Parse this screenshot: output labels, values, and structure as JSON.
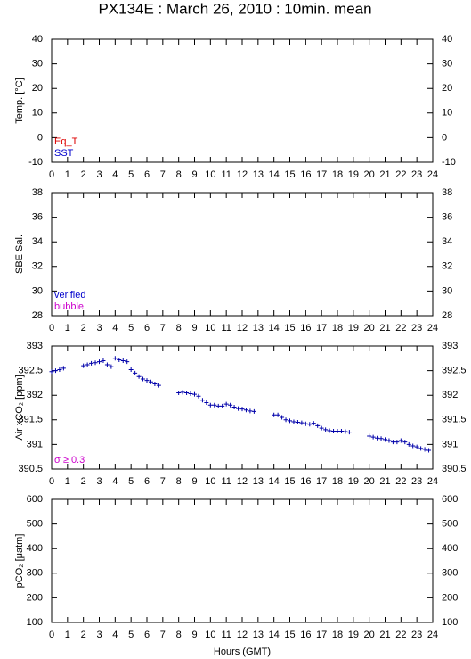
{
  "chart_data": [
    {
      "type": "scatter",
      "title": "PX134E : March 26, 2010 : 10min. mean",
      "ylabel": "Temp. [°C]",
      "xlim": [
        0,
        24
      ],
      "xticks": [
        0,
        1,
        2,
        3,
        4,
        5,
        6,
        7,
        8,
        9,
        10,
        11,
        12,
        13,
        14,
        15,
        16,
        17,
        18,
        19,
        20,
        21,
        22,
        23,
        24
      ],
      "ylim": [
        -10,
        40
      ],
      "yticks": [
        -10,
        0,
        10,
        20,
        30,
        40
      ],
      "legend": [
        {
          "name": "Eq_T",
          "color": "#dd0000"
        },
        {
          "name": "SST",
          "color": "#0000cc"
        }
      ],
      "x": [],
      "values": []
    },
    {
      "type": "scatter",
      "ylabel": "SBE Sal.",
      "xlim": [
        0,
        24
      ],
      "xticks": [
        0,
        1,
        2,
        3,
        4,
        5,
        6,
        7,
        8,
        9,
        10,
        11,
        12,
        13,
        14,
        15,
        16,
        17,
        18,
        19,
        20,
        21,
        22,
        23,
        24
      ],
      "ylim": [
        28,
        38
      ],
      "yticks": [
        28,
        30,
        32,
        34,
        36,
        38
      ],
      "legend": [
        {
          "name": "verified",
          "color": "#0000cc"
        },
        {
          "name": "bubble",
          "color": "#cc00cc"
        }
      ],
      "x": [],
      "values": []
    },
    {
      "type": "scatter",
      "ylabel": "Air xCO₂ [ppm]",
      "color": "#0000aa",
      "xlim": [
        0,
        24
      ],
      "xticks": [
        0,
        1,
        2,
        3,
        4,
        5,
        6,
        7,
        8,
        9,
        10,
        11,
        12,
        13,
        14,
        15,
        16,
        17,
        18,
        19,
        20,
        21,
        22,
        23,
        24
      ],
      "ylim": [
        390.5,
        393
      ],
      "yticks": [
        390.5,
        391,
        391.5,
        392,
        392.5,
        393
      ],
      "legend": [
        {
          "name": "σ ≥ 0.3",
          "color": "#cc00cc"
        }
      ],
      "x": [
        0,
        0.25,
        0.5,
        0.75,
        1,
        1.25,
        1.5,
        1.75,
        2,
        2.25,
        2.5,
        2.75,
        3,
        3.25,
        3.5,
        3.75,
        4,
        4.25,
        4.5,
        4.75,
        5,
        5.25,
        5.5,
        5.75,
        6,
        6.25,
        6.5,
        6.75,
        7,
        7.25,
        7.5,
        7.75,
        8,
        8.25,
        8.5,
        8.75,
        9,
        9.25,
        9.5,
        9.75,
        10,
        10.25,
        10.5,
        10.75,
        11,
        11.25,
        11.5,
        11.75,
        12,
        12.25,
        12.5,
        12.75,
        13,
        13.25,
        13.5,
        13.75,
        14,
        14.25,
        14.5,
        14.75,
        15,
        15.25,
        15.5,
        15.75,
        16,
        16.25,
        16.5,
        16.75,
        17,
        17.25,
        17.5,
        17.75,
        18,
        18.25,
        18.5,
        18.75,
        19,
        19.25,
        19.5,
        19.75,
        20,
        20.25,
        20.5,
        20.75,
        21,
        21.25,
        21.5,
        21.75,
        22,
        22.25,
        22.5,
        22.75,
        23,
        23.25,
        23.5,
        23.75
      ],
      "values": [
        392.48,
        392.5,
        392.52,
        392.55,
        null,
        null,
        null,
        null,
        392.6,
        392.62,
        392.65,
        392.66,
        392.68,
        392.7,
        392.62,
        392.58,
        392.75,
        392.72,
        392.7,
        392.68,
        392.52,
        392.45,
        392.38,
        392.33,
        392.3,
        392.27,
        392.23,
        392.2,
        null,
        null,
        null,
        null,
        392.05,
        392.06,
        392.05,
        392.03,
        392.02,
        391.98,
        391.9,
        391.85,
        391.8,
        391.8,
        391.78,
        391.78,
        391.82,
        391.8,
        391.76,
        391.73,
        391.72,
        391.7,
        391.68,
        391.67,
        null,
        null,
        null,
        null,
        391.6,
        391.6,
        391.55,
        391.5,
        391.48,
        391.46,
        391.45,
        391.44,
        391.42,
        391.41,
        391.43,
        391.38,
        391.33,
        391.3,
        391.28,
        391.27,
        391.27,
        391.27,
        391.26,
        391.25,
        null,
        null,
        null,
        null,
        391.17,
        391.15,
        391.13,
        391.12,
        391.1,
        391.08,
        391.05,
        391.05,
        391.08,
        391.05,
        391.0,
        390.97,
        390.95,
        390.92,
        390.9,
        390.88
      ]
    },
    {
      "type": "scatter",
      "ylabel": "pCO₂ [μatm]",
      "xlabel": "Hours (GMT)",
      "xlim": [
        0,
        24
      ],
      "xticks": [
        0,
        1,
        2,
        3,
        4,
        5,
        6,
        7,
        8,
        9,
        10,
        11,
        12,
        13,
        14,
        15,
        16,
        17,
        18,
        19,
        20,
        21,
        22,
        23,
        24
      ],
      "ylim": [
        100,
        600
      ],
      "yticks": [
        100,
        200,
        300,
        400,
        500,
        600
      ],
      "x": [],
      "values": []
    }
  ]
}
